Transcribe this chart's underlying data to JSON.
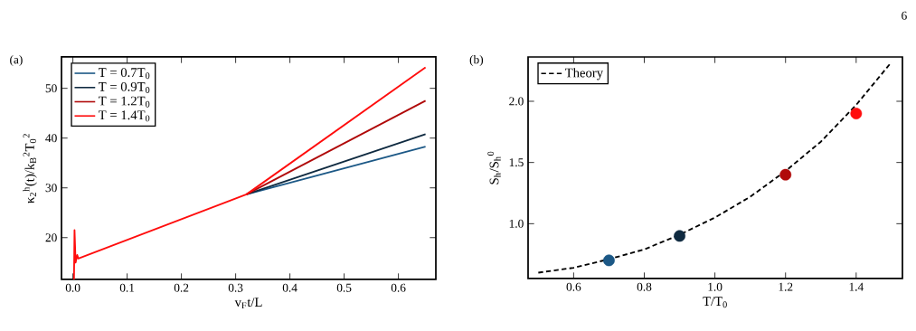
{
  "chart_data": [
    {
      "type": "line",
      "title": "(a)",
      "xlabel": "v$_{F}$t/L",
      "ylabel": "κ$_{2}$$^{h}$(t)/k$_{B}$$^{2}$T$_{0}$$^{2}$",
      "x": [
        0.002,
        0.003,
        0.005,
        0.008,
        0.01,
        0.32,
        0.65
      ],
      "series": [
        {
          "name": "T = 0.7T$_{0}$",
          "color": "#1c5886",
          "values": [
            null,
            null,
            null,
            null,
            null,
            28.7,
            38.3
          ]
        },
        {
          "name": "T = 0.9T$_{0}$",
          "color": "#0f2a40",
          "values": [
            null,
            null,
            null,
            null,
            null,
            28.7,
            40.8
          ]
        },
        {
          "name": "T = 1.2T$_{0}$",
          "color": "#b00a0a",
          "values": [
            null,
            null,
            null,
            null,
            null,
            28.7,
            47.5
          ]
        },
        {
          "name": "T = 1.4T$_{0}$",
          "color": "#ff0d0d",
          "values": [
            11.6,
            21.5,
            15,
            16.5,
            15.8,
            28.7,
            54.2
          ]
        }
      ],
      "xlim": [
        -0.021,
        0.669
      ],
      "ylim": [
        11.6,
        56.3
      ],
      "xticks": [
        {
          "value": 0,
          "label": "0.0"
        },
        0.1,
        0.2,
        0.3,
        0.4,
        0.5,
        0.6
      ],
      "yticks": [
        20,
        30,
        40,
        50
      ],
      "grid": false,
      "legend": "top left",
      "marker": "none",
      "line_style": "solid"
    },
    {
      "type": "scatter",
      "title": "(b)",
      "xlabel": "T/T$_{0}$",
      "ylabel": "S$_{h}$/S$_{h}$$^{0}$",
      "annotations": [
        "6"
      ],
      "series": [
        {
          "x": [
            0.7,
            0.9,
            1.2,
            1.4
          ],
          "values": [
            0.7,
            0.9,
            1.4,
            1.9
          ],
          "colors": [
            "#1c5886",
            "#0f2a40",
            "#b00a0a",
            "#ff0d0d"
          ],
          "marker": "circle"
        },
        {
          "type": "line",
          "name": "Theory",
          "color": "#000000",
          "line_style": "dashed",
          "marker": "none",
          "x": [
            0.5,
            0.6,
            0.7,
            0.8,
            0.9,
            1.0,
            1.1,
            1.2,
            1.3,
            1.4,
            1.5
          ],
          "values": [
            0.6,
            0.64,
            0.71,
            0.79,
            0.91,
            1.05,
            1.22,
            1.43,
            1.67,
            1.97,
            2.32
          ]
        }
      ],
      "xlim": [
        0.471,
        1.531
      ],
      "ylim": [
        0.552,
        2.362
      ],
      "xticks": [
        0.6,
        0.8,
        {
          "value": 1,
          "label": "1.0"
        },
        1.2,
        1.4
      ],
      "yticks": [
        {
          "value": 1,
          "label": "1.0"
        },
        1.5,
        {
          "value": 2,
          "label": "2.0"
        }
      ],
      "grid": false,
      "legend": "top left"
    }
  ]
}
